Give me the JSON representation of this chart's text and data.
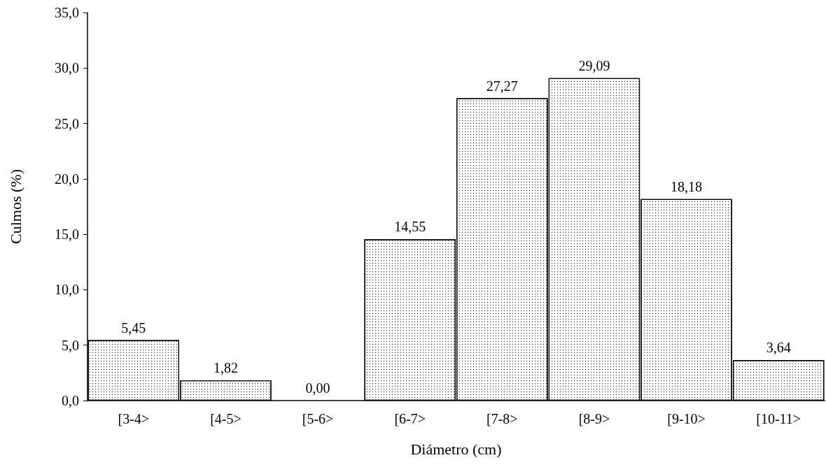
{
  "chart_data": {
    "type": "bar",
    "xlabel": "Diámetro (cm)",
    "ylabel": "Culmos (%)",
    "categories": [
      "[3-4>",
      "[4-5>",
      "[5-6>",
      "[6-7>",
      "[7-8>",
      "[8-9>",
      "[9-10>",
      "[10-11>"
    ],
    "values": [
      5.45,
      1.82,
      0.0,
      14.55,
      27.27,
      29.09,
      18.18,
      3.64
    ],
    "value_labels": [
      "5,45",
      "1,82",
      "0,00",
      "14,55",
      "27,27",
      "29,09",
      "18,18",
      "3,64"
    ],
    "color": "#ffffff",
    "ylim": [
      0,
      35
    ],
    "yticks": [
      {
        "value": 0,
        "label": "0,0"
      },
      {
        "value": 5,
        "label": "5,0"
      },
      {
        "value": 10,
        "label": "10,0"
      },
      {
        "value": 15,
        "label": "15,0"
      },
      {
        "value": 20,
        "label": "20,0"
      },
      {
        "value": 25,
        "label": "25,0"
      },
      {
        "value": 30,
        "label": "30,0"
      },
      {
        "value": 35,
        "label": "35,0"
      }
    ]
  }
}
